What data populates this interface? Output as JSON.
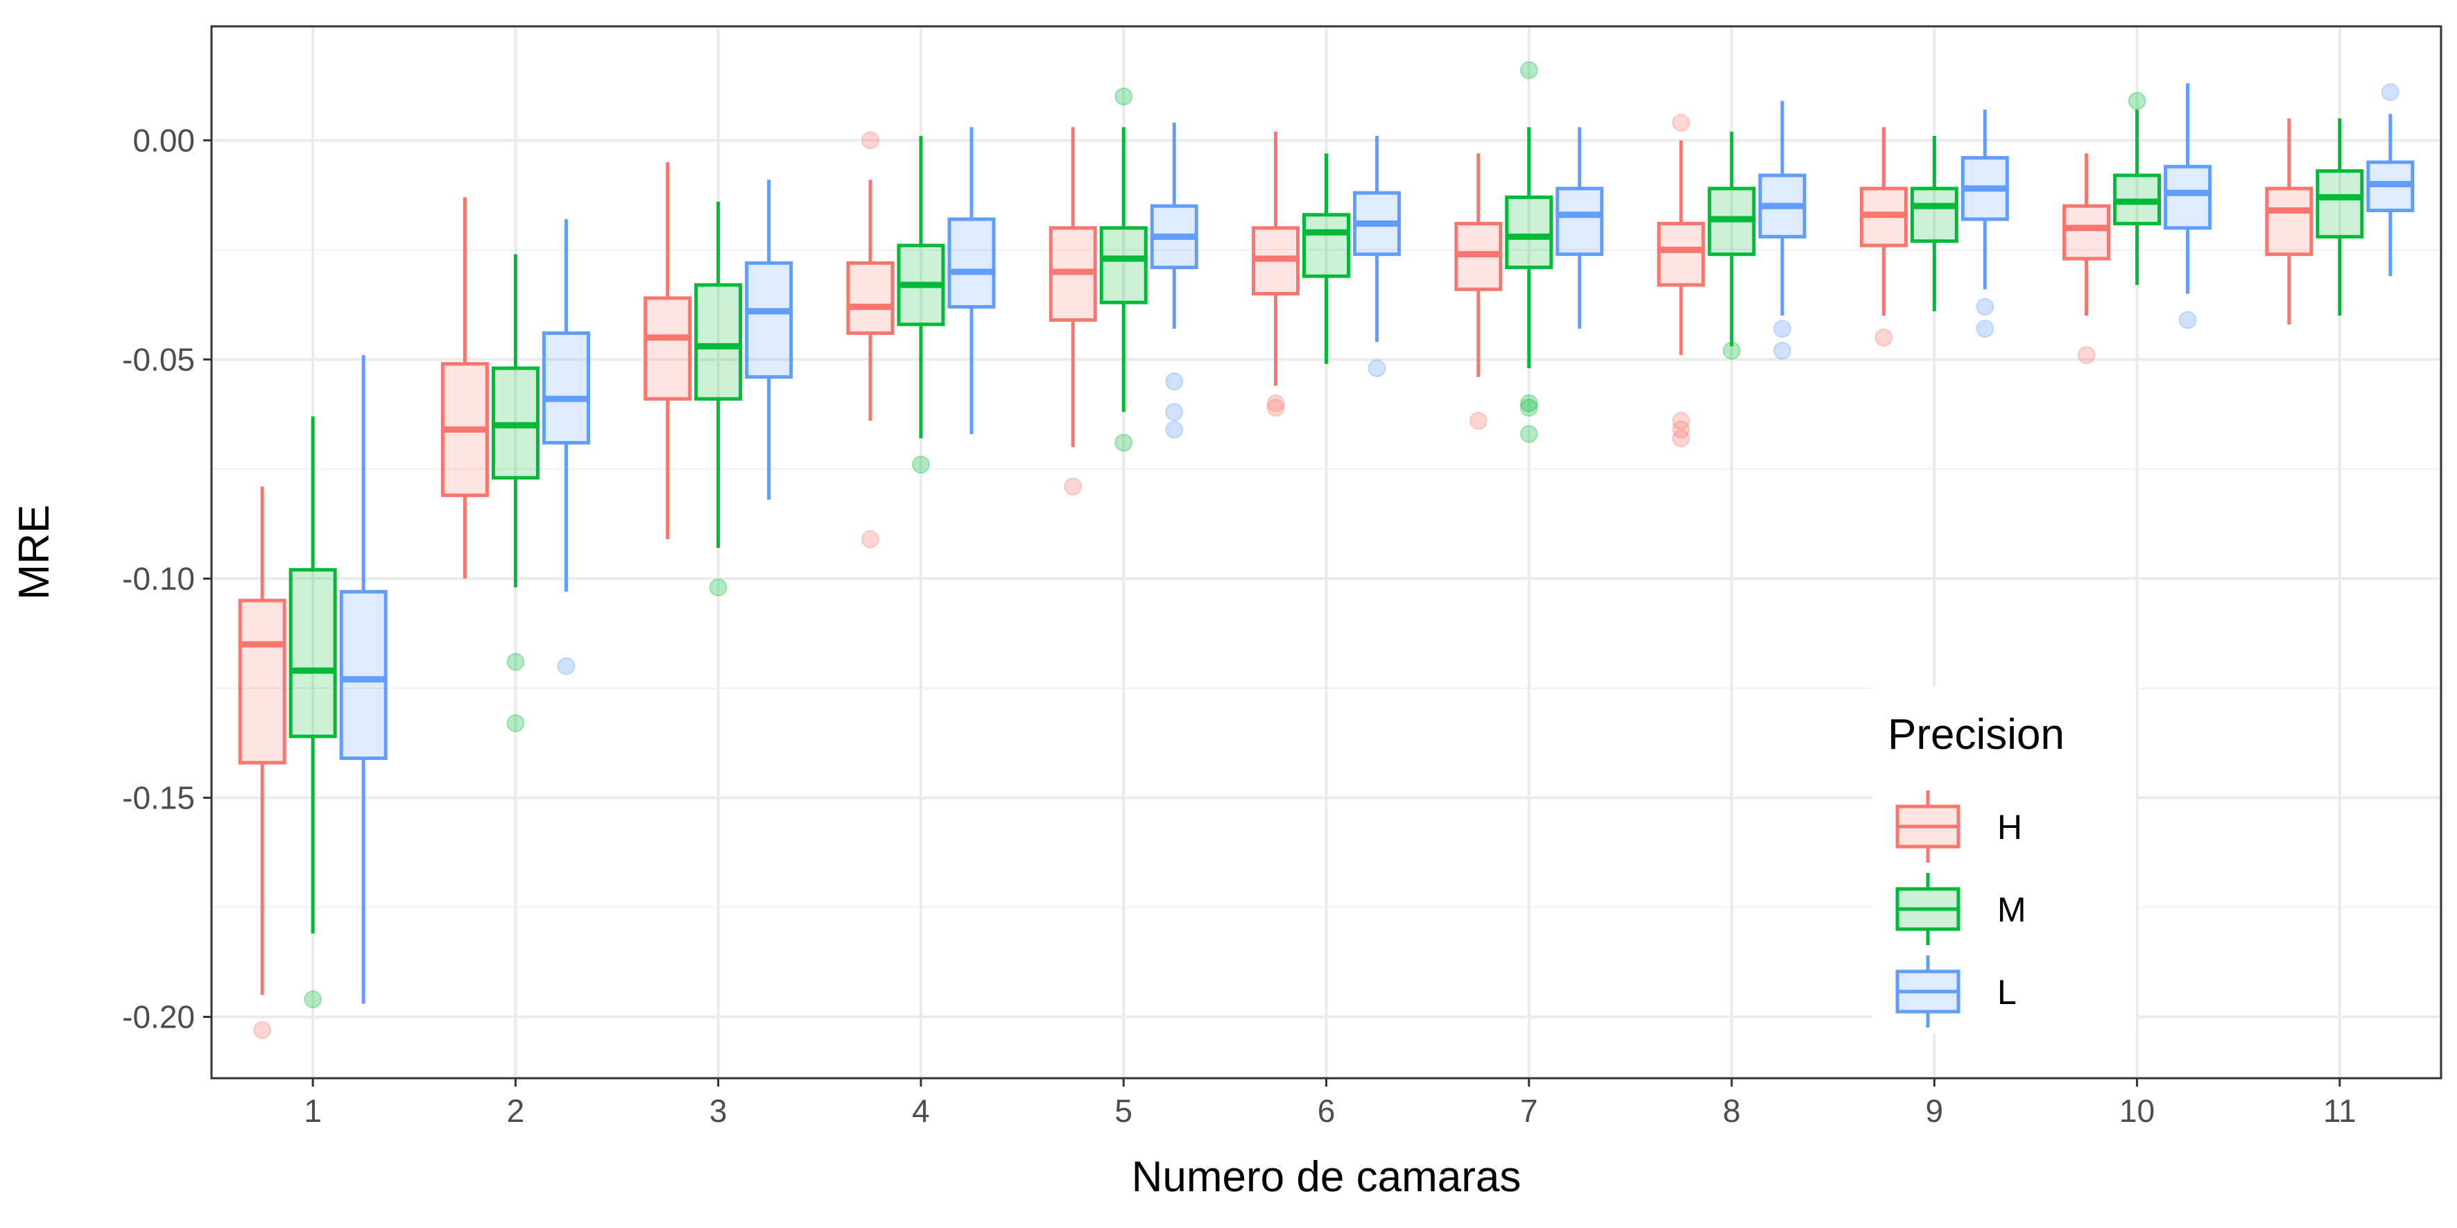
{
  "chart_data": {
    "type": "box",
    "xlabel": "Numero de camaras",
    "ylabel": "MRE",
    "categories": [
      "1",
      "2",
      "3",
      "4",
      "5",
      "6",
      "7",
      "8",
      "9",
      "10",
      "11"
    ],
    "y_ticks": [
      0.0,
      -0.05,
      -0.1,
      -0.15,
      -0.2
    ],
    "y_tick_labels": [
      "0.00",
      "-0.05",
      "-0.10",
      "-0.15",
      "-0.20"
    ],
    "ylim": [
      -0.214,
      0.026
    ],
    "grid": true,
    "legend": {
      "title": "Precision",
      "position": "inside-bottom-right"
    },
    "series": [
      {
        "name": "H",
        "color": "#F8766D",
        "boxes": [
          {
            "min": -0.195,
            "q1": -0.142,
            "median": -0.115,
            "q3": -0.105,
            "max": -0.079,
            "outliers": [
              -0.203
            ]
          },
          {
            "min": -0.1,
            "q1": -0.081,
            "median": -0.066,
            "q3": -0.051,
            "max": -0.013,
            "outliers": []
          },
          {
            "min": -0.091,
            "q1": -0.059,
            "median": -0.045,
            "q3": -0.036,
            "max": -0.005,
            "outliers": []
          },
          {
            "min": -0.064,
            "q1": -0.044,
            "median": -0.038,
            "q3": -0.028,
            "max": -0.009,
            "outliers": [
              -0.091,
              0.0
            ]
          },
          {
            "min": -0.07,
            "q1": -0.041,
            "median": -0.03,
            "q3": -0.02,
            "max": 0.003,
            "outliers": [
              -0.079
            ]
          },
          {
            "min": -0.056,
            "q1": -0.035,
            "median": -0.027,
            "q3": -0.02,
            "max": 0.002,
            "outliers": [
              -0.06,
              -0.061
            ]
          },
          {
            "min": -0.054,
            "q1": -0.034,
            "median": -0.026,
            "q3": -0.019,
            "max": -0.003,
            "outliers": [
              -0.064
            ]
          },
          {
            "min": -0.049,
            "q1": -0.033,
            "median": -0.025,
            "q3": -0.019,
            "max": 0.0,
            "outliers": [
              -0.064,
              -0.066,
              -0.068,
              0.004
            ]
          },
          {
            "min": -0.04,
            "q1": -0.024,
            "median": -0.017,
            "q3": -0.011,
            "max": 0.003,
            "outliers": [
              -0.045
            ]
          },
          {
            "min": -0.04,
            "q1": -0.027,
            "median": -0.02,
            "q3": -0.015,
            "max": -0.003,
            "outliers": [
              -0.049
            ]
          },
          {
            "min": -0.042,
            "q1": -0.026,
            "median": -0.016,
            "q3": -0.011,
            "max": 0.005,
            "outliers": []
          }
        ]
      },
      {
        "name": "M",
        "color": "#00BA38",
        "boxes": [
          {
            "min": -0.181,
            "q1": -0.136,
            "median": -0.121,
            "q3": -0.098,
            "max": -0.063,
            "outliers": [
              -0.196
            ]
          },
          {
            "min": -0.102,
            "q1": -0.077,
            "median": -0.065,
            "q3": -0.052,
            "max": -0.026,
            "outliers": [
              -0.119,
              -0.133
            ]
          },
          {
            "min": -0.093,
            "q1": -0.059,
            "median": -0.047,
            "q3": -0.033,
            "max": -0.014,
            "outliers": [
              -0.102
            ]
          },
          {
            "min": -0.068,
            "q1": -0.042,
            "median": -0.033,
            "q3": -0.024,
            "max": 0.001,
            "outliers": [
              -0.074
            ]
          },
          {
            "min": -0.062,
            "q1": -0.037,
            "median": -0.027,
            "q3": -0.02,
            "max": 0.003,
            "outliers": [
              -0.069,
              0.01
            ]
          },
          {
            "min": -0.051,
            "q1": -0.031,
            "median": -0.021,
            "q3": -0.017,
            "max": -0.003,
            "outliers": []
          },
          {
            "min": -0.052,
            "q1": -0.029,
            "median": -0.022,
            "q3": -0.013,
            "max": 0.003,
            "outliers": [
              -0.06,
              -0.061,
              -0.067,
              0.016
            ]
          },
          {
            "min": -0.047,
            "q1": -0.026,
            "median": -0.018,
            "q3": -0.011,
            "max": 0.002,
            "outliers": [
              -0.048
            ]
          },
          {
            "min": -0.039,
            "q1": -0.023,
            "median": -0.015,
            "q3": -0.011,
            "max": 0.001,
            "outliers": []
          },
          {
            "min": -0.033,
            "q1": -0.019,
            "median": -0.014,
            "q3": -0.008,
            "max": 0.007,
            "outliers": [
              0.009
            ]
          },
          {
            "min": -0.04,
            "q1": -0.022,
            "median": -0.013,
            "q3": -0.007,
            "max": 0.005,
            "outliers": []
          }
        ]
      },
      {
        "name": "L",
        "color": "#619CFF",
        "boxes": [
          {
            "min": -0.197,
            "q1": -0.141,
            "median": -0.123,
            "q3": -0.103,
            "max": -0.049,
            "outliers": []
          },
          {
            "min": -0.103,
            "q1": -0.069,
            "median": -0.059,
            "q3": -0.044,
            "max": -0.018,
            "outliers": [
              -0.12
            ]
          },
          {
            "min": -0.082,
            "q1": -0.054,
            "median": -0.039,
            "q3": -0.028,
            "max": -0.009,
            "outliers": []
          },
          {
            "min": -0.067,
            "q1": -0.038,
            "median": -0.03,
            "q3": -0.018,
            "max": 0.003,
            "outliers": []
          },
          {
            "min": -0.043,
            "q1": -0.029,
            "median": -0.022,
            "q3": -0.015,
            "max": 0.004,
            "outliers": [
              -0.055,
              -0.062,
              -0.066
            ]
          },
          {
            "min": -0.046,
            "q1": -0.026,
            "median": -0.019,
            "q3": -0.012,
            "max": 0.001,
            "outliers": [
              -0.052
            ]
          },
          {
            "min": -0.043,
            "q1": -0.026,
            "median": -0.017,
            "q3": -0.011,
            "max": 0.003,
            "outliers": []
          },
          {
            "min": -0.04,
            "q1": -0.022,
            "median": -0.015,
            "q3": -0.008,
            "max": 0.009,
            "outliers": [
              -0.043,
              -0.048
            ]
          },
          {
            "min": -0.034,
            "q1": -0.018,
            "median": -0.011,
            "q3": -0.004,
            "max": 0.007,
            "outliers": [
              -0.038,
              -0.043
            ]
          },
          {
            "min": -0.035,
            "q1": -0.02,
            "median": -0.012,
            "q3": -0.006,
            "max": 0.013,
            "outliers": [
              -0.041
            ]
          },
          {
            "min": -0.031,
            "q1": -0.016,
            "median": -0.01,
            "q3": -0.005,
            "max": 0.006,
            "outliers": [
              0.011
            ]
          }
        ]
      }
    ]
  }
}
